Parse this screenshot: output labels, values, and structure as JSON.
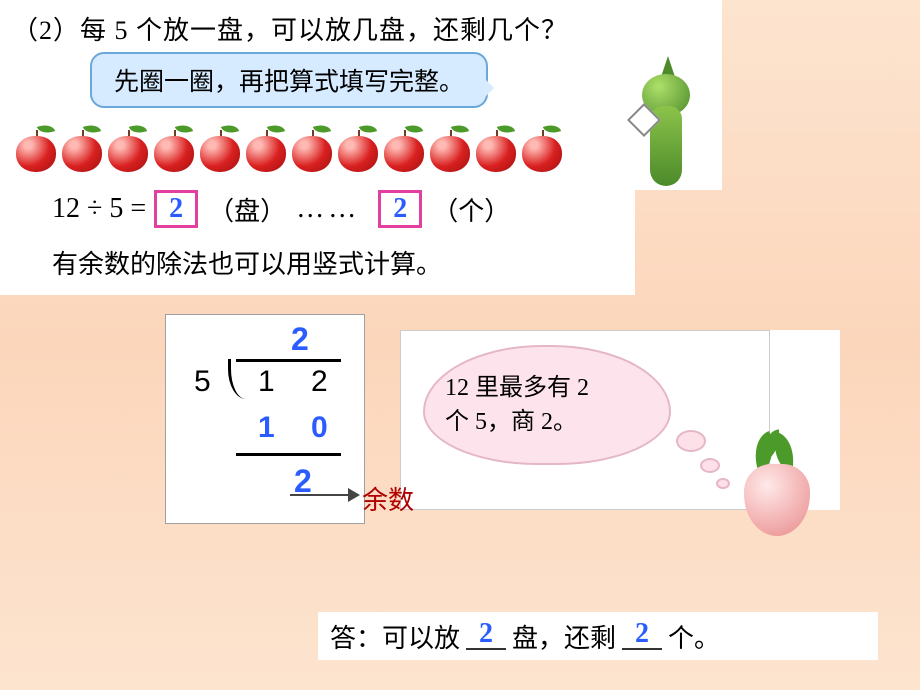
{
  "question": "（2）每 5 个放一盘，可以放几盘，还剩几个？",
  "speech": "先圈一圈，再把算式填写完整。",
  "apples": {
    "count": 12,
    "body_color": "#d92020",
    "leaf_color": "#4c9a2a"
  },
  "equation": {
    "lhs": "12 ÷ 5 =",
    "quotient": "2",
    "unit1": "（盘）",
    "dots": "……",
    "remainder": "2",
    "unit2": "（个）",
    "box_border": "#e33fa1",
    "value_color": "#2a5cff"
  },
  "statement": "有余数的除法也可以用竖式计算。",
  "longdiv": {
    "quotient": "2",
    "divisor": "5",
    "dividend": "1 2",
    "subtract": "1 0",
    "remainder": "2",
    "remainder_label": "余数",
    "blue": "#2a5cff",
    "label_color": "#b00000"
  },
  "cloud": {
    "line1": "12 里最多有 2",
    "line2": "个 5，商 2。",
    "bg": "#fde3ec"
  },
  "answer": {
    "prefix": "答：可以放",
    "val1": "2",
    "mid1": "盘，还剩",
    "val2": "2",
    "suffix": "个。"
  },
  "colors": {
    "bg_top": "#fde4cf",
    "white": "#ffffff"
  }
}
